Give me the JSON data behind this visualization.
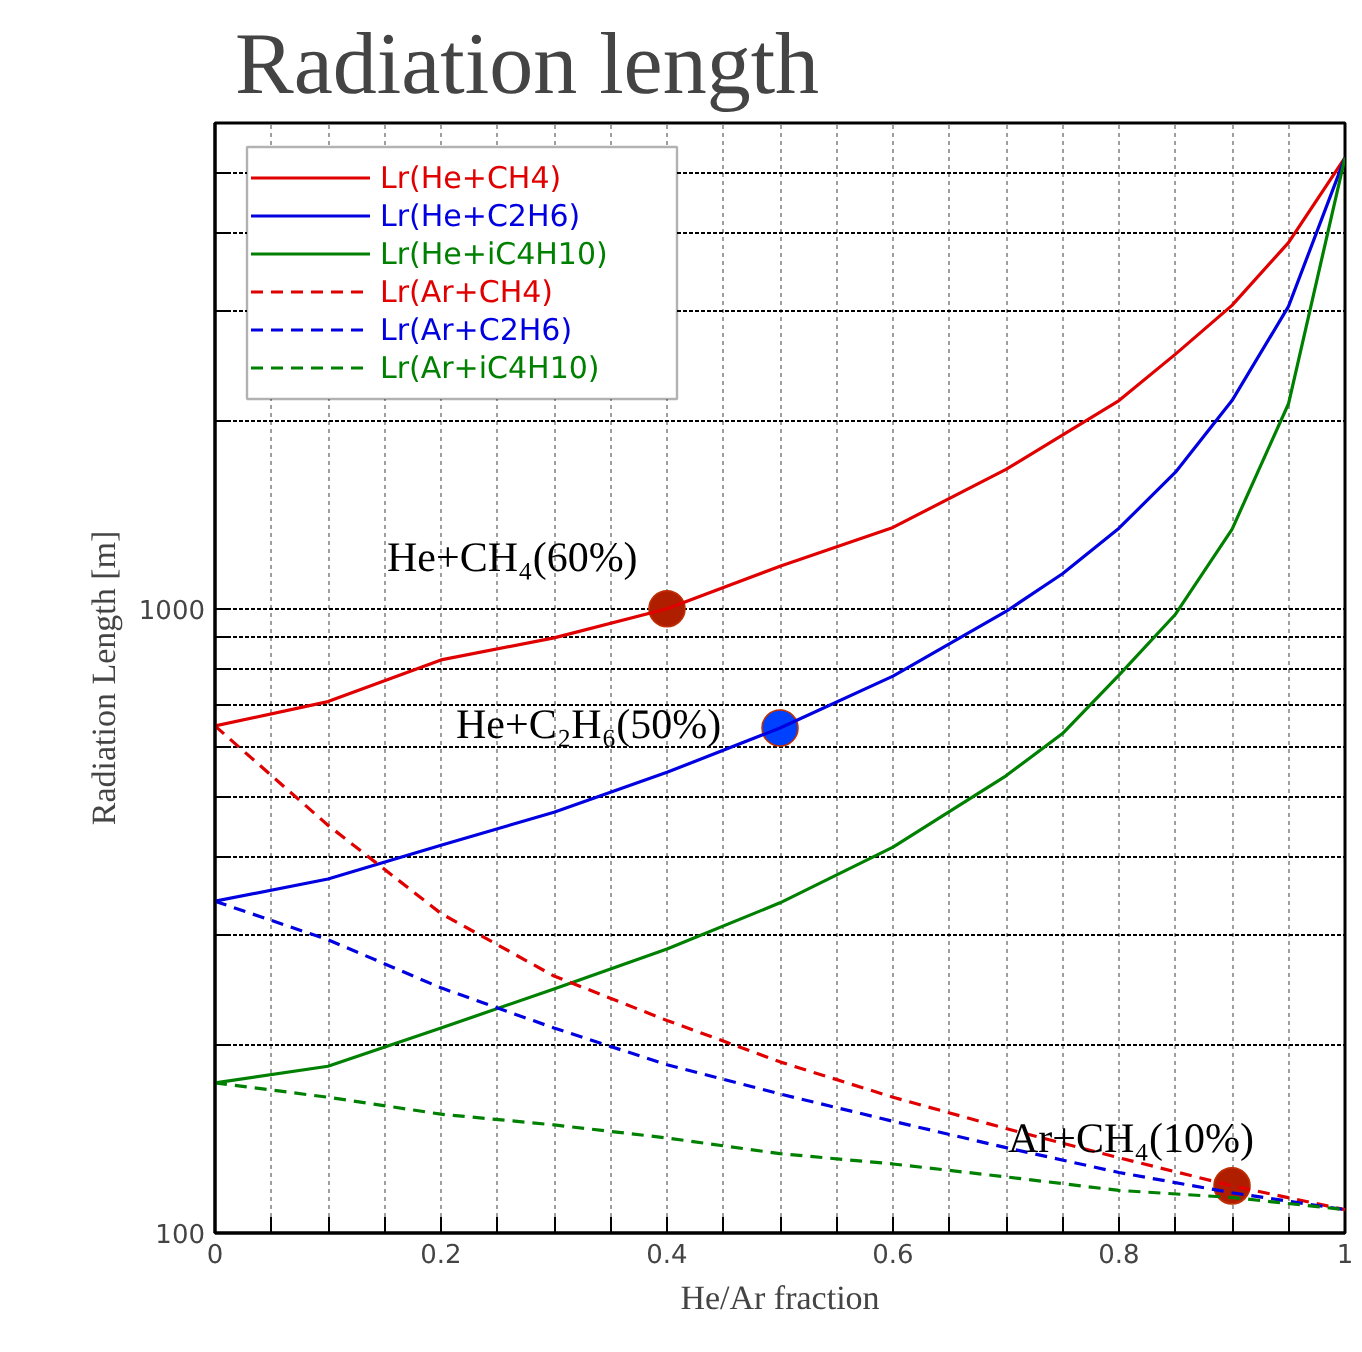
{
  "chart_data": {
    "type": "line",
    "title": "Radiation length",
    "xlabel": "He/Ar fraction",
    "ylabel": "Radiation Length [m]",
    "x": [
      0,
      0.1,
      0.2,
      0.3,
      0.4,
      0.5,
      0.6,
      0.7,
      0.8,
      0.9,
      1
    ],
    "series": [
      {
        "name": "Lr(He+CH4)",
        "color": "#e00000",
        "line_style": "solid",
        "x": [
          0,
          0.1,
          0.2,
          0.3,
          0.4,
          0.5,
          0.6,
          0.7,
          0.8,
          0.85,
          0.9,
          0.95,
          1
        ],
        "values": [
          649,
          710,
          828,
          898,
          1000,
          1170,
          1350,
          1672,
          2155,
          2558,
          3062,
          3860,
          5280
        ]
      },
      {
        "name": "Lr(He+C2H6)",
        "color": "#0000e0",
        "line_style": "solid",
        "x": [
          0,
          0.1,
          0.2,
          0.3,
          0.4,
          0.5,
          0.6,
          0.7,
          0.75,
          0.8,
          0.85,
          0.9,
          0.95,
          1
        ],
        "values": [
          340,
          369,
          418,
          472,
          547,
          644,
          780,
          990,
          1138,
          1346,
          1655,
          2155,
          3050,
          5280
        ]
      },
      {
        "name": "Lr(He+iC4H10)",
        "color": "#008000",
        "line_style": "solid",
        "x": [
          0,
          0.1,
          0.2,
          0.3,
          0.4,
          0.5,
          0.6,
          0.7,
          0.75,
          0.8,
          0.85,
          0.9,
          0.95,
          1
        ],
        "values": [
          174,
          185,
          213,
          246,
          285,
          338,
          415,
          540,
          631,
          783,
          980,
          1340,
          2130,
          5280
        ]
      },
      {
        "name": "Lr(Ar+CH4)",
        "color": "#e00000",
        "line_style": "dashed",
        "values": [
          649,
          450,
          325,
          258,
          219,
          188,
          165,
          147,
          132,
          119,
          109
        ]
      },
      {
        "name": "Lr(Ar+C2H6)",
        "color": "#0000e0",
        "line_style": "dashed",
        "values": [
          340,
          295,
          247,
          213,
          186,
          167,
          151,
          137,
          125,
          116,
          109
        ]
      },
      {
        "name": "Lr(Ar+iC4H10)",
        "color": "#008000",
        "line_style": "dashed",
        "values": [
          174,
          165,
          155,
          149,
          142,
          134,
          129,
          123,
          117,
          114,
          109
        ]
      },
      {
        "type": "scatter",
        "marker": "circle",
        "x": [
          0.4,
          0.5,
          0.9
        ],
        "values": [
          1000,
          644,
          119
        ],
        "colors": [
          "#b01e00",
          "#0040ff",
          "#b01e00"
        ]
      }
    ],
    "annotations": [
      {
        "text": "He+CH₄(60%)",
        "x": 0.4,
        "y": 1000
      },
      {
        "text": "He+C₂H₆(50%)",
        "x": 0.5,
        "y": 644
      },
      {
        "text": "Ar+CH₄(10%)",
        "x": 0.9,
        "y": 119
      }
    ],
    "log": "y",
    "xlim": [
      0,
      1
    ],
    "ylim": [
      100,
      6000
    ],
    "xticks": [
      0,
      {
        "value": 0.05,
        "label": null
      },
      0.2,
      {
        "value": 0.1,
        "label": null
      },
      {
        "value": 0.15,
        "label": null
      },
      {
        "value": 0.25,
        "label": null
      },
      {
        "value": 0.3,
        "label": null
      },
      {
        "value": 0.35,
        "label": null
      },
      0.4,
      {
        "value": 0.45,
        "label": null
      },
      {
        "value": 0.5,
        "label": null
      },
      {
        "value": 0.55,
        "label": null
      },
      0.6,
      {
        "value": 0.65,
        "label": null
      },
      {
        "value": 0.7,
        "label": null
      },
      {
        "value": 0.75,
        "label": null
      },
      0.8,
      {
        "value": 0.85,
        "label": null
      },
      {
        "value": 0.9,
        "label": null
      },
      {
        "value": 0.95,
        "label": null
      },
      1
    ],
    "yticks": [
      100,
      {
        "value": 200,
        "label": null
      },
      {
        "value": 300,
        "label": null
      },
      {
        "value": 400,
        "label": null
      },
      {
        "value": 500,
        "label": null
      },
      {
        "value": 600,
        "label": null
      },
      {
        "value": 700,
        "label": null
      },
      {
        "value": 800,
        "label": null
      },
      {
        "value": 900,
        "label": null
      },
      1000,
      {
        "value": 2000,
        "label": null
      },
      {
        "value": 3000,
        "label": null
      },
      {
        "value": 4000,
        "label": null
      },
      {
        "value": 5000,
        "label": null
      },
      {
        "value": 6000,
        "label": null
      }
    ],
    "grid": true,
    "legend": "top left"
  }
}
